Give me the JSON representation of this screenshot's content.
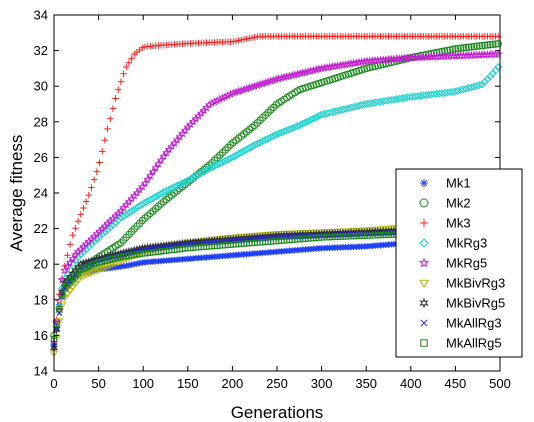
{
  "chart_data": {
    "type": "scatter",
    "xlabel": "Generations",
    "ylabel": "Average fitness",
    "xlim": [
      0,
      500
    ],
    "ylim": [
      14,
      34
    ],
    "xticks": [
      0,
      50,
      100,
      150,
      200,
      250,
      300,
      350,
      400,
      450,
      500
    ],
    "yticks": [
      14,
      16,
      18,
      20,
      22,
      24,
      26,
      28,
      30,
      32,
      34
    ],
    "grid": false,
    "legend_position": "bottom-right",
    "series": [
      {
        "name": "Mk1",
        "marker": "asterisk",
        "color": "#1f3fff",
        "x": [
          0,
          5,
          10,
          20,
          30,
          50,
          80,
          100,
          150,
          200,
          250,
          300,
          350,
          400,
          450,
          500
        ],
        "y": [
          15.5,
          17.5,
          18.6,
          19.2,
          19.5,
          19.7,
          19.9,
          20.1,
          20.3,
          20.5,
          20.7,
          20.9,
          21.0,
          21.2,
          21.5,
          21.8
        ]
      },
      {
        "name": "Mk2",
        "marker": "circle",
        "color": "#1a8a1a",
        "x": [
          0,
          10,
          30,
          50,
          75,
          100,
          125,
          150,
          175,
          200,
          225,
          250,
          275,
          300,
          350,
          400,
          450,
          500
        ],
        "y": [
          16.0,
          18.5,
          19.6,
          20.4,
          21.2,
          22.5,
          23.6,
          24.6,
          25.6,
          26.8,
          27.8,
          29.0,
          29.8,
          30.2,
          31.0,
          31.6,
          32.1,
          32.4
        ]
      },
      {
        "name": "Mk3",
        "marker": "plus",
        "color": "#ff1f1f",
        "x": [
          0,
          5,
          10,
          20,
          30,
          40,
          50,
          60,
          70,
          80,
          90,
          100,
          120,
          150,
          200,
          230,
          300,
          400,
          500
        ],
        "y": [
          15.2,
          18.0,
          19.5,
          21.5,
          22.8,
          24.0,
          25.5,
          27.6,
          29.5,
          31.0,
          31.8,
          32.2,
          32.3,
          32.4,
          32.5,
          32.8,
          32.8,
          32.8,
          32.8
        ]
      },
      {
        "name": "MkRg3",
        "marker": "diamond",
        "color": "#19d1d1",
        "x": [
          0,
          10,
          25,
          50,
          75,
          100,
          125,
          150,
          175,
          200,
          225,
          250,
          275,
          300,
          350,
          400,
          450,
          480,
          490,
          500
        ],
        "y": [
          15.5,
          19.0,
          20.3,
          21.5,
          22.6,
          23.4,
          24.1,
          24.7,
          25.4,
          26.0,
          26.7,
          27.3,
          27.8,
          28.4,
          29.0,
          29.4,
          29.7,
          30.1,
          30.6,
          31.2
        ]
      },
      {
        "name": "MkRg5",
        "marker": "pentagram",
        "color": "#c21fd1",
        "x": [
          0,
          10,
          25,
          50,
          75,
          100,
          125,
          150,
          175,
          200,
          225,
          250,
          300,
          350,
          400,
          450,
          500
        ],
        "y": [
          15.6,
          19.5,
          20.6,
          21.8,
          23.0,
          24.4,
          26.2,
          27.7,
          29.0,
          29.6,
          30.0,
          30.4,
          31.0,
          31.4,
          31.6,
          31.7,
          31.8
        ]
      },
      {
        "name": "MkBivRg3",
        "marker": "triangle-down",
        "color": "#b8b800",
        "x": [
          0,
          10,
          30,
          50,
          75,
          100,
          150,
          200,
          250,
          300,
          350,
          400,
          450,
          500
        ],
        "y": [
          15.0,
          18.0,
          19.3,
          19.7,
          20.2,
          20.7,
          21.2,
          21.5,
          21.7,
          21.8,
          21.9,
          22.1,
          22.2,
          22.4
        ]
      },
      {
        "name": "MkBivRg5",
        "marker": "hexagram",
        "color": "#333333",
        "x": [
          0,
          10,
          30,
          50,
          75,
          100,
          150,
          200,
          250,
          300,
          350,
          400,
          450,
          500
        ],
        "y": [
          15.3,
          18.8,
          20.0,
          20.3,
          20.6,
          20.9,
          21.2,
          21.4,
          21.6,
          21.7,
          21.8,
          21.9,
          22.0,
          22.1
        ]
      },
      {
        "name": "MkAllRg3",
        "marker": "cross",
        "color": "#1f1fcc",
        "x": [
          0,
          10,
          30,
          50,
          75,
          100,
          150,
          200,
          250,
          300,
          350,
          400,
          450,
          500
        ],
        "y": [
          15.4,
          18.5,
          19.8,
          20.2,
          20.5,
          20.8,
          21.1,
          21.3,
          21.5,
          21.6,
          21.7,
          21.8,
          21.9,
          22.0
        ]
      },
      {
        "name": "MkAllRg5",
        "marker": "square",
        "color": "#1a8a1a",
        "x": [
          0,
          10,
          30,
          50,
          75,
          100,
          150,
          200,
          250,
          300,
          350,
          400,
          450,
          500
        ],
        "y": [
          15.8,
          18.6,
          19.7,
          20.1,
          20.4,
          20.6,
          20.9,
          21.1,
          21.3,
          21.5,
          21.6,
          21.7,
          21.9,
          22.1
        ]
      }
    ]
  }
}
